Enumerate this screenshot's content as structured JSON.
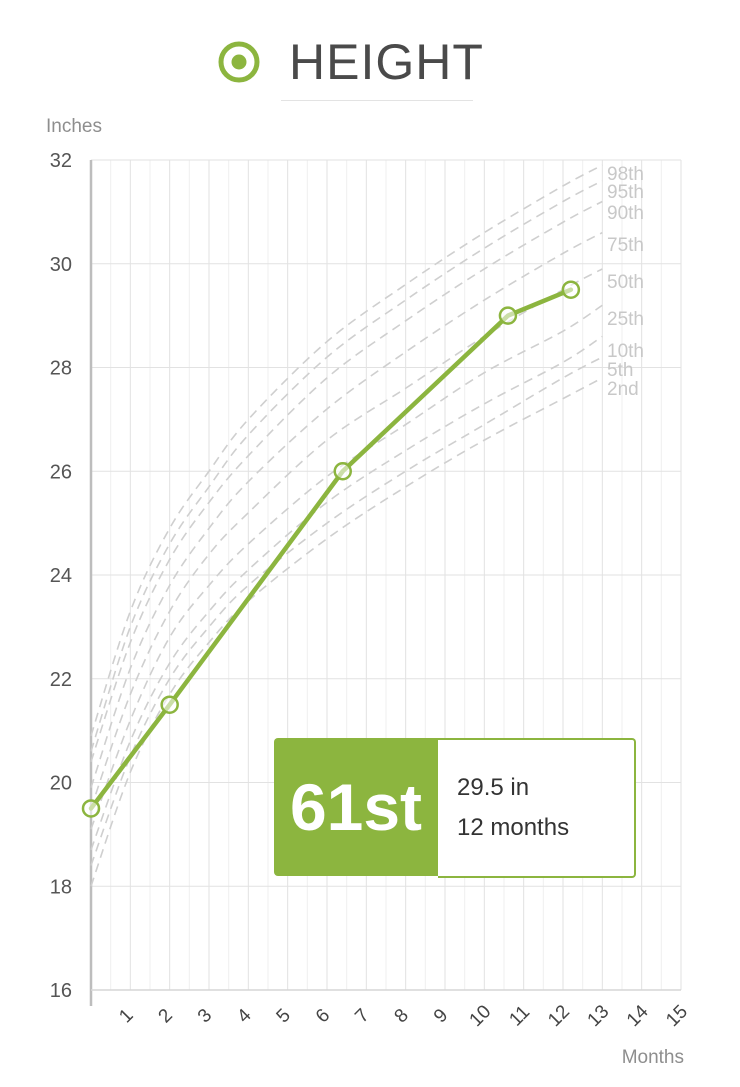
{
  "header": {
    "title": "HEIGHT",
    "icon": "target-icon",
    "accent_color": "#8cb53f"
  },
  "summary": {
    "percentile": "61st",
    "measurement": "29.5 in",
    "age": "12 months"
  },
  "chart_data": {
    "type": "line",
    "title": "HEIGHT",
    "xlabel": "Months",
    "ylabel": "Inches",
    "xlim": [
      0,
      15
    ],
    "ylim": [
      16,
      32
    ],
    "x_ticks": [
      1,
      2,
      3,
      4,
      5,
      6,
      7,
      8,
      9,
      10,
      11,
      12,
      13,
      14,
      15
    ],
    "y_ticks": [
      16,
      18,
      20,
      22,
      24,
      26,
      28,
      30,
      32
    ],
    "grid": true,
    "series": [
      {
        "x": [
          0,
          2,
          6.4,
          10.6,
          12.2
        ],
        "values": [
          19.5,
          21.5,
          26.0,
          29.0,
          29.5
        ],
        "color": "#8cb53f"
      }
    ],
    "percentile_curves": [
      {
        "name": "98th",
        "x": [
          0,
          1,
          2,
          3,
          4,
          6,
          8,
          10,
          12,
          13
        ],
        "values": [
          20.9,
          23.3,
          24.9,
          26.0,
          27.0,
          28.5,
          29.6,
          30.6,
          31.5,
          31.9
        ]
      },
      {
        "name": "95th",
        "x": [
          0,
          1,
          2,
          3,
          4,
          6,
          8,
          10,
          12,
          13
        ],
        "values": [
          20.6,
          23.0,
          24.6,
          25.7,
          26.7,
          28.2,
          29.3,
          30.3,
          31.2,
          31.6
        ]
      },
      {
        "name": "90th",
        "x": [
          0,
          1,
          2,
          3,
          4,
          6,
          8,
          10,
          12,
          13
        ],
        "values": [
          20.4,
          22.7,
          24.3,
          25.4,
          26.3,
          27.8,
          28.9,
          29.9,
          30.8,
          31.2
        ]
      },
      {
        "name": "75th",
        "x": [
          0,
          1,
          2,
          3,
          4,
          6,
          8,
          10,
          12,
          13
        ],
        "values": [
          19.9,
          22.2,
          23.8,
          24.9,
          25.8,
          27.2,
          28.3,
          29.3,
          30.2,
          30.6
        ]
      },
      {
        "name": "50th",
        "x": [
          0,
          1,
          2,
          3,
          4,
          6,
          8,
          10,
          12,
          13
        ],
        "values": [
          19.5,
          21.7,
          23.3,
          24.4,
          25.2,
          26.6,
          27.6,
          28.6,
          29.5,
          29.9
        ]
      },
      {
        "name": "25th",
        "x": [
          0,
          1,
          2,
          3,
          4,
          6,
          8,
          10,
          12,
          13
        ],
        "values": [
          19.1,
          21.2,
          22.8,
          23.8,
          24.6,
          25.9,
          26.9,
          27.9,
          28.7,
          29.2
        ]
      },
      {
        "name": "10th",
        "x": [
          0,
          1,
          2,
          3,
          4,
          6,
          8,
          10,
          12,
          13
        ],
        "values": [
          18.7,
          20.8,
          22.3,
          23.3,
          24.1,
          25.4,
          26.4,
          27.3,
          28.1,
          28.6
        ]
      },
      {
        "name": "5th",
        "x": [
          0,
          1,
          2,
          3,
          4,
          6,
          8,
          10,
          12,
          13
        ],
        "values": [
          18.4,
          20.5,
          22.0,
          23.0,
          23.8,
          25.0,
          26.0,
          26.9,
          27.8,
          28.2
        ]
      },
      {
        "name": "2nd",
        "x": [
          0,
          1,
          2,
          3,
          4,
          6,
          8,
          10,
          12,
          13
        ],
        "values": [
          18.0,
          20.2,
          21.7,
          22.7,
          23.5,
          24.7,
          25.7,
          26.6,
          27.4,
          27.8
        ]
      }
    ]
  }
}
